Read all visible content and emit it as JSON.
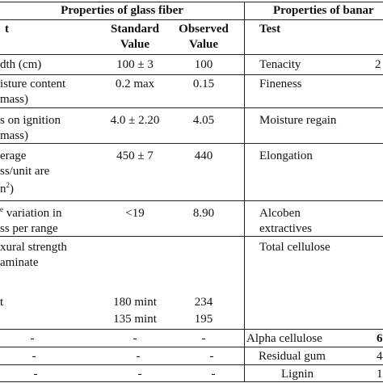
{
  "header": {
    "glass_group": "Properties of glass fiber",
    "banana_group": "Properties of banar",
    "test_col": "t",
    "standard_col_line1": "Standard",
    "standard_col_line2": "Value",
    "observed_col_line1": "Observed",
    "observed_col_line2": "Value",
    "banana_test_col": "Test"
  },
  "rows": [
    {
      "test_lines": [
        "dth (cm)"
      ],
      "standard": "100 ± 3",
      "observed": "100",
      "banana_test": [
        "Tenacity"
      ],
      "banana_value": "2"
    },
    {
      "test_lines": [
        "isture content",
        "mass)"
      ],
      "standard": "0.2 max",
      "observed": "0.15",
      "banana_test": [
        "Fineness"
      ],
      "banana_value": ""
    },
    {
      "test_lines": [
        "s on ignition",
        "mass)"
      ],
      "standard": "4.0 ± 2.20",
      "observed": "4.05",
      "banana_test": [
        "Moisture regain"
      ],
      "banana_value": ""
    },
    {
      "test_lines": [
        "erage",
        "ss/unit are",
        "n"
      ],
      "test_sup": "2",
      "standard": "450 ± 7",
      "observed": "440",
      "banana_test": [
        "Elongation"
      ],
      "banana_value": ""
    },
    {
      "test_lines": [
        "variation in",
        "ss per range"
      ],
      "test_sup_pre": "e",
      "standard": "<19",
      "observed": "8.90",
      "banana_test": [
        "Alcoben",
        "extractives"
      ],
      "banana_value": ""
    },
    {
      "test_lines": [
        "xural strength",
        "aminate",
        "t"
      ],
      "standard_lines": [
        "180 mint",
        "135 mint"
      ],
      "observed_lines": [
        "234",
        "195"
      ],
      "banana_test": [
        "Total cellulose"
      ],
      "banana_value": ""
    },
    {
      "dash_test": "-",
      "dash_standard": "-",
      "dash_observed": "-",
      "banana_test": [
        "Alpha cellulose"
      ],
      "banana_value": "6"
    },
    {
      "dash_test": "-",
      "dash_standard": "-",
      "dash_observed": "-",
      "banana_test": [
        "Residual gum"
      ],
      "banana_value": "4"
    },
    {
      "dash_test": "-",
      "dash_standard": "-",
      "dash_observed": "-",
      "banana_test": [
        "Lignin"
      ],
      "banana_value": "1"
    }
  ]
}
